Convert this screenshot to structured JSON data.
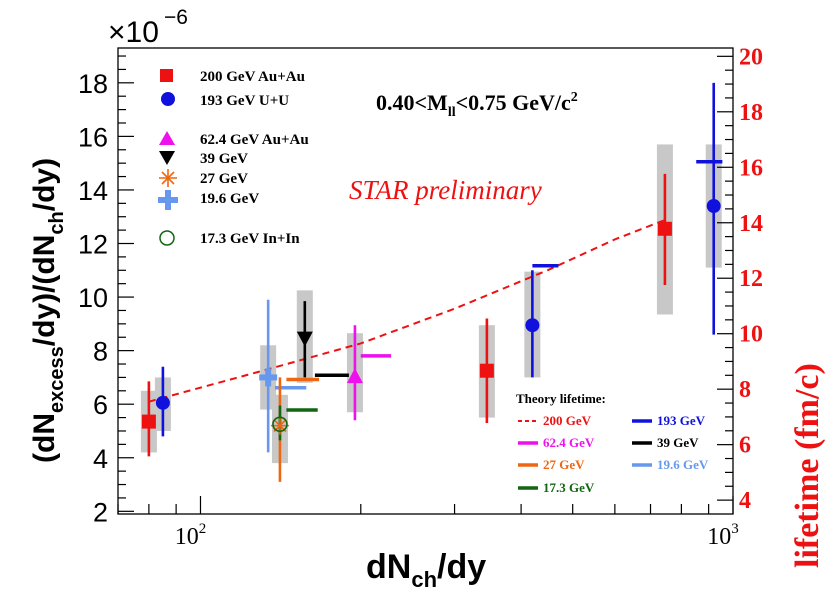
{
  "chart_data": {
    "type": "scatter",
    "title": "0.40<M_ll<0.75 GeV/c^2",
    "annotation": "STAR preliminary",
    "xlabel": "dN_ch/dy",
    "ylabel": "(dN_excess/dy)/(dN_ch/dy)",
    "y2label": "lifetime (fm/c)",
    "x_scale": "log",
    "xlim": [
      70,
      1000
    ],
    "ylim": [
      1.9,
      19.3
    ],
    "y2lim": [
      3.5,
      20.3
    ],
    "y_multiplier": "×10^-6",
    "x_tick_labels": [
      "10^2",
      "10^3"
    ],
    "y_ticks": [
      2,
      4,
      6,
      8,
      10,
      12,
      14,
      16,
      18
    ],
    "y2_ticks": [
      4,
      6,
      8,
      10,
      12,
      14,
      16,
      18,
      20
    ],
    "legend_text": {
      "au200": "200 GeV Au+Au",
      "uu193": "193 GeV U+U",
      "au62": "62.4 GeV Au+Au",
      "g39": "39 GeV",
      "g27": "27 GeV",
      "g196": "19.6 GeV",
      "inin": "17.3 GeV In+In"
    },
    "theory_title": "Theory lifetime:",
    "theory_legend": [
      {
        "label": "200 GeV",
        "color": "#ee1111",
        "dashed": true
      },
      {
        "label": "193 GeV",
        "color": "#1111dd"
      },
      {
        "label": "62.4 GeV",
        "color": "#ee11ee"
      },
      {
        "label": "39 GeV",
        "color": "#000000"
      },
      {
        "label": "27 GeV",
        "color": "#ee6611"
      },
      {
        "label": "19.6 GeV",
        "color": "#6699ee"
      },
      {
        "label": "17.3 GeV",
        "color": "#116611"
      }
    ],
    "series": [
      {
        "name": "200 GeV Au+Au",
        "marker": "square",
        "color": "#ee1111",
        "points": [
          {
            "x": 80,
            "y": 5.35,
            "stat": [
              4.05,
              6.85
            ],
            "sys": [
              4.2,
              6.5
            ]
          },
          {
            "x": 345,
            "y": 7.25,
            "stat": [
              5.3,
              9.2
            ],
            "sys": [
              5.5,
              8.95
            ]
          },
          {
            "x": 745,
            "y": 12.55,
            "stat": [
              10.45,
              14.6
            ],
            "sys": [
              9.35,
              15.7
            ]
          }
        ]
      },
      {
        "name": "193 GeV U+U",
        "marker": "circle",
        "color": "#1111dd",
        "points": [
          {
            "x": 85,
            "y": 6.05,
            "stat": [
              4.8,
              7.4
            ],
            "sys": [
              5.0,
              7.0
            ]
          },
          {
            "x": 420,
            "y": 8.95,
            "stat": [
              7.0,
              11.0
            ],
            "sys": [
              7.0,
              10.95
            ]
          },
          {
            "x": 920,
            "y": 13.4,
            "stat": [
              8.6,
              18.0
            ],
            "sys": [
              11.1,
              15.7
            ]
          }
        ]
      },
      {
        "name": "62.4 GeV Au+Au",
        "marker": "triangle-up",
        "color": "#ee11ee",
        "points": [
          {
            "x": 195,
            "y": 7.05,
            "stat": [
              5.4,
              8.95
            ],
            "sys": [
              5.7,
              8.65
            ]
          }
        ]
      },
      {
        "name": "39 GeV",
        "marker": "triangle-down",
        "color": "#000000",
        "points": [
          {
            "x": 157,
            "y": 8.45,
            "stat": [
              7.0,
              9.85
            ],
            "sys": [
              6.8,
              10.25
            ]
          }
        ]
      },
      {
        "name": "27 GeV",
        "marker": "asterisk",
        "color": "#ee6611",
        "points": [
          {
            "x": 141,
            "y": 5.2,
            "stat": [
              3.1,
              7.0
            ],
            "sys": [
              3.8,
              6.35
            ]
          }
        ]
      },
      {
        "name": "19.6 GeV",
        "marker": "cross",
        "color": "#6699ee",
        "points": [
          {
            "x": 134,
            "y": 7.0,
            "stat": [
              4.2,
              9.9
            ],
            "sys": [
              5.8,
              8.2
            ]
          }
        ]
      },
      {
        "name": "17.3 GeV In+In",
        "marker": "open-circle",
        "color": "#116611",
        "points": [
          {
            "x": 141,
            "y": 5.25,
            "stat": [
              4.65,
              5.95
            ],
            "sys": [
              4.65,
              5.95
            ]
          }
        ]
      }
    ],
    "theory_curve_200": {
      "x": [
        80,
        130,
        200,
        300,
        450,
        600,
        745
      ],
      "y2": [
        7.55,
        8.65,
        9.65,
        10.9,
        12.3,
        13.4,
        14.1
      ]
    },
    "theory_lifetime_ticks": [
      {
        "x": [
          853,
          955
        ],
        "y2": 16.2,
        "color": "#1111dd"
      },
      {
        "x": [
          420,
          470
        ],
        "y2": 12.45,
        "color": "#1111dd"
      },
      {
        "x": [
          200,
          228
        ],
        "y2": 9.2,
        "color": "#ee11ee"
      },
      {
        "x": [
          164,
          190
        ],
        "y2": 8.5,
        "color": "#000000"
      },
      {
        "x": [
          145,
          167
        ],
        "y2": 8.35,
        "color": "#ee6611"
      },
      {
        "x": [
          138,
          158
        ],
        "y2": 8.05,
        "color": "#6699ee"
      },
      {
        "x": [
          145,
          166
        ],
        "y2": 7.25,
        "color": "#116611"
      }
    ]
  }
}
